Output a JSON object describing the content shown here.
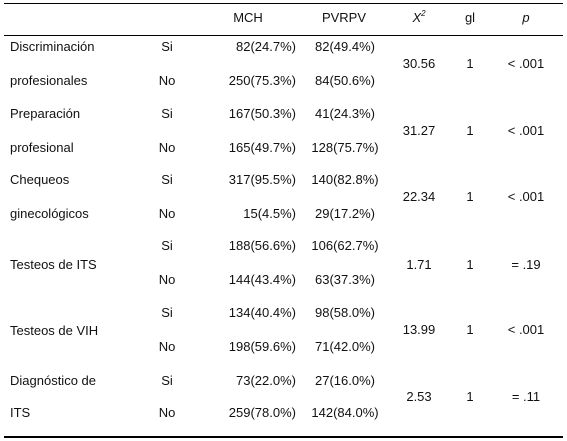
{
  "header": {
    "col_mch": "MCH",
    "col_pvrpv": "PVRPV",
    "col_x2_base": "X",
    "col_x2_sup": "2",
    "col_gl": "gl",
    "col_p": "p"
  },
  "rows": [
    {
      "label1": "Discriminación",
      "label2": "profesionales",
      "si": "Si",
      "no": "No",
      "mch_si": "82(24.7%)",
      "pv_si": "82(49.4%)",
      "mch_no": "250(75.3%)",
      "pv_no": "84(50.6%)",
      "x2": "30.56",
      "gl": "1",
      "p": "< .001"
    },
    {
      "label1": "Preparación",
      "label2": "profesional",
      "si": "Si",
      "no": "No",
      "mch_si": "167(50.3%)",
      "pv_si": "41(24.3%)",
      "mch_no": "165(49.7%)",
      "pv_no": "128(75.7%)",
      "x2": "31.27",
      "gl": "1",
      "p": "< .001"
    },
    {
      "label1": "Chequeos",
      "label2": "ginecológicos",
      "si": "Si",
      "no": "No",
      "mch_si": "317(95.5%)",
      "pv_si": "140(82.8%)",
      "mch_no": "15(4.5%)",
      "pv_no": "29(17.2%)",
      "x2": "22.34",
      "gl": "1",
      "p": "< .001"
    },
    {
      "label1": "Testeos de ITS",
      "label2": "",
      "si": "Si",
      "no": "No",
      "mch_si": "188(56.6%)",
      "pv_si": "106(62.7%)",
      "mch_no": "144(43.4%)",
      "pv_no": "63(37.3%)",
      "x2": "1.71",
      "gl": "1",
      "p": "= .19"
    },
    {
      "label1": "Testeos de VIH",
      "label2": "",
      "si": "Si",
      "no": "No",
      "mch_si": "134(40.4%)",
      "pv_si": "98(58.0%)",
      "mch_no": "198(59.6%)",
      "pv_no": "71(42.0%)",
      "x2": "13.99",
      "gl": "1",
      "p": "< .001"
    },
    {
      "label1": "Diagnóstico de",
      "label2": "ITS",
      "si": "Si",
      "no": "No",
      "mch_si": "73(22.0%)",
      "pv_si": "27(16.0%)",
      "mch_no": "259(78.0%)",
      "pv_no": "142(84.0%)",
      "x2": "2.53",
      "gl": "1",
      "p": "= .11"
    }
  ]
}
